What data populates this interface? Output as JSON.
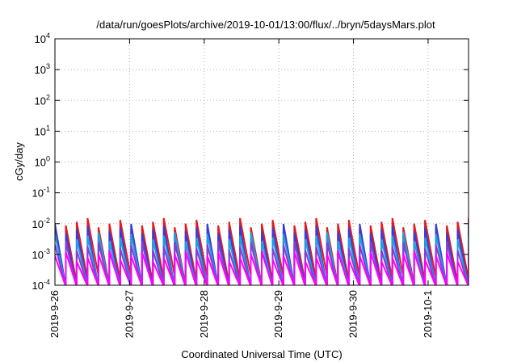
{
  "chart_data": {
    "type": "line",
    "title": "/data/run/goesPlots/archive/2019-10-01/13:00/flux/../bryn/5daysMars.plot",
    "xlabel": "Coordinated Universal Time (UTC)",
    "ylabel": "cGy/day",
    "yscale": "log",
    "ylim": [
      0.0001,
      10000
    ],
    "xlim": [
      "2019-09-26 00:00",
      "2019-10-01 13:00"
    ],
    "grid": true,
    "y_ticks": [
      {
        "base": "10",
        "exp": "-4",
        "value": 0.0001
      },
      {
        "base": "10",
        "exp": "-3",
        "value": 0.001
      },
      {
        "base": "10",
        "exp": "-2",
        "value": 0.01
      },
      {
        "base": "10",
        "exp": "-1",
        "value": 0.1
      },
      {
        "base": "10",
        "exp": "0",
        "value": 1
      },
      {
        "base": "10",
        "exp": "1",
        "value": 10
      },
      {
        "base": "10",
        "exp": "2",
        "value": 100
      },
      {
        "base": "10",
        "exp": "3",
        "value": 1000
      },
      {
        "base": "10",
        "exp": "4",
        "value": 10000
      }
    ],
    "x_ticks": [
      "2019-9-26",
      "2019-9-27",
      "2019-9-28",
      "2019-9-29",
      "2019-9-30",
      "2019-10-1"
    ],
    "series": [
      {
        "color": "#e41a1c",
        "peak": 0.01,
        "trough": 0.0001
      },
      {
        "color": "#3b3bd6",
        "peak": 0.0065,
        "trough": 0.0001
      },
      {
        "color": "#1f9ee0",
        "peak": 0.0035,
        "trough": 0.0001
      },
      {
        "color": "#8a3bd6",
        "peak": 0.0018,
        "trough": 0.0001
      },
      {
        "color": "#ff00ff",
        "peak": 0.0009,
        "trough": 0.0001
      }
    ]
  }
}
